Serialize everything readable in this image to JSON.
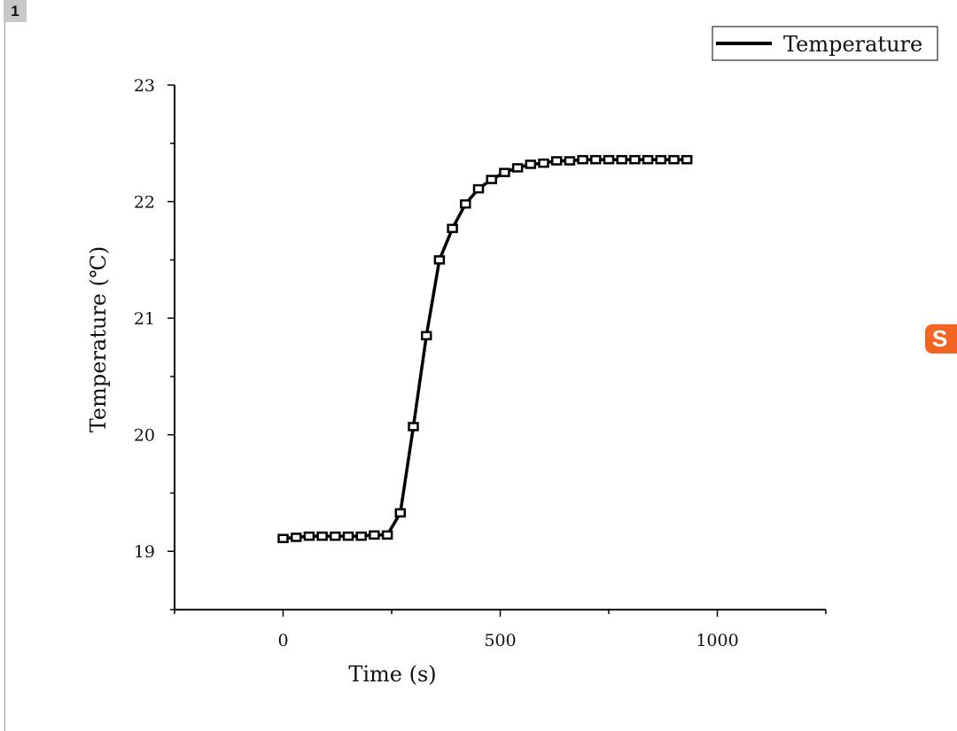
{
  "page_label": "1",
  "ime_icon": "sogou-input-icon",
  "ime_letter": "S",
  "chart_data": {
    "type": "line",
    "title": "",
    "xlabel": "Time (s)",
    "ylabel": "Temperature (℃)",
    "xlim": [
      -250,
      1250
    ],
    "ylim": [
      18.5,
      23
    ],
    "xticks": [
      "0",
      "500",
      "1000"
    ],
    "xtick_values": [
      0,
      500,
      1000
    ],
    "yticks": [
      "19",
      "20",
      "21",
      "22",
      "23"
    ],
    "ytick_values": [
      19,
      20,
      21,
      22,
      23
    ],
    "grid": false,
    "legend_position": "top-right",
    "series": [
      {
        "name": "Temperature",
        "color": "#000000",
        "marker": "square-hollow",
        "x": [
          0,
          30,
          60,
          90,
          120,
          150,
          180,
          210,
          240,
          270,
          300,
          330,
          360,
          390,
          420,
          450,
          480,
          510,
          540,
          570,
          600,
          630,
          660,
          690,
          720,
          750,
          780,
          810,
          840,
          870,
          900,
          930
        ],
        "y": [
          19.11,
          19.12,
          19.13,
          19.13,
          19.13,
          19.13,
          19.13,
          19.14,
          19.14,
          19.33,
          20.07,
          20.85,
          21.5,
          21.77,
          21.98,
          22.11,
          22.19,
          22.25,
          22.29,
          22.32,
          22.33,
          22.35,
          22.35,
          22.36,
          22.36,
          22.36,
          22.36,
          22.36,
          22.36,
          22.36,
          22.36,
          22.36
        ]
      }
    ]
  }
}
